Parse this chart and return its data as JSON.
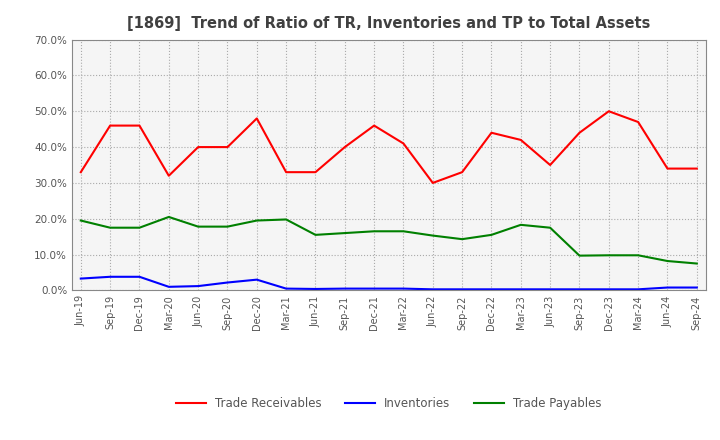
{
  "title": "[1869]  Trend of Ratio of TR, Inventories and TP to Total Assets",
  "x_labels": [
    "Jun-19",
    "Sep-19",
    "Dec-19",
    "Mar-20",
    "Jun-20",
    "Sep-20",
    "Dec-20",
    "Mar-21",
    "Jun-21",
    "Sep-21",
    "Dec-21",
    "Mar-22",
    "Jun-22",
    "Sep-22",
    "Dec-22",
    "Mar-23",
    "Jun-23",
    "Sep-23",
    "Dec-23",
    "Mar-24",
    "Jun-24",
    "Sep-24"
  ],
  "trade_receivables": [
    0.33,
    0.46,
    0.46,
    0.32,
    0.4,
    0.4,
    0.48,
    0.33,
    0.33,
    0.4,
    0.46,
    0.41,
    0.3,
    0.33,
    0.44,
    0.42,
    0.35,
    0.44,
    0.5,
    0.47,
    0.34,
    0.34
  ],
  "inventories": [
    0.033,
    0.038,
    0.038,
    0.01,
    0.012,
    0.022,
    0.03,
    0.005,
    0.004,
    0.005,
    0.005,
    0.005,
    0.003,
    0.003,
    0.003,
    0.003,
    0.003,
    0.003,
    0.003,
    0.003,
    0.008,
    0.008
  ],
  "trade_payables": [
    0.195,
    0.175,
    0.175,
    0.205,
    0.178,
    0.178,
    0.195,
    0.198,
    0.155,
    0.16,
    0.165,
    0.165,
    0.153,
    0.143,
    0.155,
    0.183,
    0.175,
    0.097,
    0.098,
    0.098,
    0.082,
    0.075
  ],
  "tr_color": "#FF0000",
  "inv_color": "#0000FF",
  "tp_color": "#008000",
  "ylim": [
    0.0,
    0.7
  ],
  "yticks": [
    0.0,
    0.1,
    0.2,
    0.3,
    0.4,
    0.5,
    0.6,
    0.7
  ],
  "legend_labels": [
    "Trade Receivables",
    "Inventories",
    "Trade Payables"
  ],
  "bg_color": "#FFFFFF",
  "plot_bg_color": "#F5F5F5",
  "grid_color": "#AAAAAA",
  "title_color": "#404040",
  "tick_color": "#555555"
}
